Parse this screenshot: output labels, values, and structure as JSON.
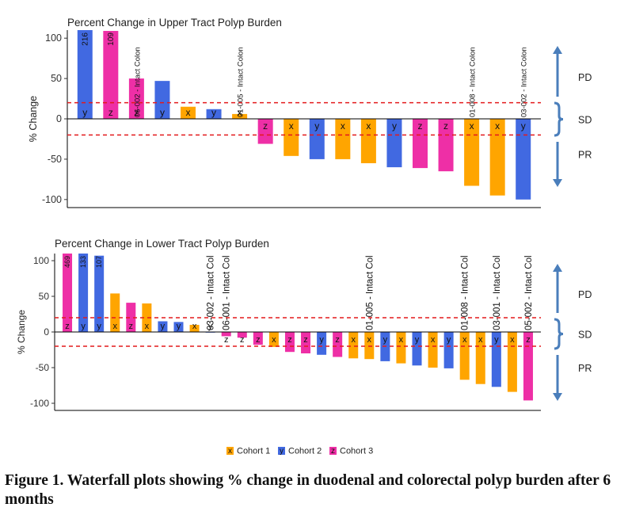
{
  "chart_data": [
    {
      "type": "bar",
      "title": "Percent Change in Upper Tract Polyp Burden",
      "xlabel": "",
      "ylabel": "% Change",
      "ylim": [
        -110,
        110
      ],
      "yticks": [
        100,
        50,
        0,
        -50,
        -100
      ],
      "reference_lines": [
        20,
        -20
      ],
      "values": [
        216,
        109,
        50,
        47,
        15,
        12,
        6,
        -31,
        -46,
        -50,
        -50,
        -55,
        -60,
        -61,
        -65,
        -83,
        -95,
        -100
      ],
      "cohort_labels": [
        "y",
        "z",
        "z",
        "y",
        "x",
        "y",
        "x",
        "z",
        "x",
        "y",
        "x",
        "x",
        "y",
        "z",
        "z",
        "x",
        "x",
        "y"
      ],
      "value_labels": [
        "216",
        "109",
        "",
        "",
        "",
        "",
        "",
        "",
        "",
        "",
        "",
        "",
        "",
        "",
        "",
        "",
        "",
        ""
      ],
      "annotations": [
        "",
        "",
        "06-002 - Intact Colon",
        "",
        "",
        "",
        "01-005 - Intact Colon",
        "",
        "",
        "",
        "",
        "",
        "",
        "",
        "",
        "01-008 - Intact Colon",
        "",
        "03-002 - Intact Colon"
      ],
      "response_bands": [
        "PD",
        "SD",
        "PR"
      ]
    },
    {
      "type": "bar",
      "title": "Percent Change in Lower Tract Polyp Burden",
      "xlabel": "",
      "ylabel": "% Change",
      "ylim": [
        -110,
        110
      ],
      "yticks": [
        100,
        50,
        0,
        -50,
        -100
      ],
      "reference_lines": [
        20,
        -20
      ],
      "values": [
        469,
        133,
        107,
        54,
        41,
        40,
        15,
        14,
        10,
        0,
        -6,
        -8,
        -18,
        -21,
        -28,
        -30,
        -32,
        -35,
        -37,
        -38,
        -41,
        -44,
        -47,
        -50,
        -51,
        -67,
        -73,
        -77,
        -84,
        -96
      ],
      "cohort_labels": [
        "z",
        "y",
        "y",
        "x",
        "z",
        "x",
        "y",
        "y",
        "x",
        "y",
        "z",
        "z",
        "z",
        "x",
        "z",
        "z",
        "y",
        "z",
        "x",
        "x",
        "y",
        "x",
        "y",
        "x",
        "y",
        "x",
        "x",
        "y",
        "x",
        "z"
      ],
      "value_labels": [
        "469",
        "133",
        "107",
        "",
        "",
        "",
        "",
        "",
        "",
        "",
        "",
        "",
        "",
        "",
        "",
        "",
        "",
        "",
        "",
        "",
        "",
        "",
        "",
        "",
        "",
        "",
        "",
        "",
        "",
        ""
      ],
      "annotations": [
        "",
        "",
        "",
        "",
        "",
        "",
        "",
        "",
        "",
        "03-002 - Intact Col",
        "06-001 - Intact Col",
        "",
        "",
        "",
        "",
        "",
        "",
        "",
        "",
        "01-005 - Intact Col",
        "",
        "",
        "",
        "",
        "",
        "01-008 - Intact Col",
        "",
        "03-001 - Intact Col",
        "",
        "05-002 - Intact Col"
      ],
      "response_bands": [
        "PD",
        "SD",
        "PR"
      ]
    }
  ],
  "legend": [
    {
      "symbol": "x",
      "label": "Cohort 1"
    },
    {
      "symbol": "y",
      "label": "Cohort 2"
    },
    {
      "symbol": "z",
      "label": "Cohort 3"
    }
  ],
  "colors": {
    "x": "#FFA500",
    "y": "#4169E1",
    "z": "#EE2FA6",
    "reference": "#E31A1C",
    "arrow": "#4A7EBB"
  },
  "caption": "Figure 1. Waterfall plots showing % change in duodenal and colorectal polyp burden after 6 months"
}
